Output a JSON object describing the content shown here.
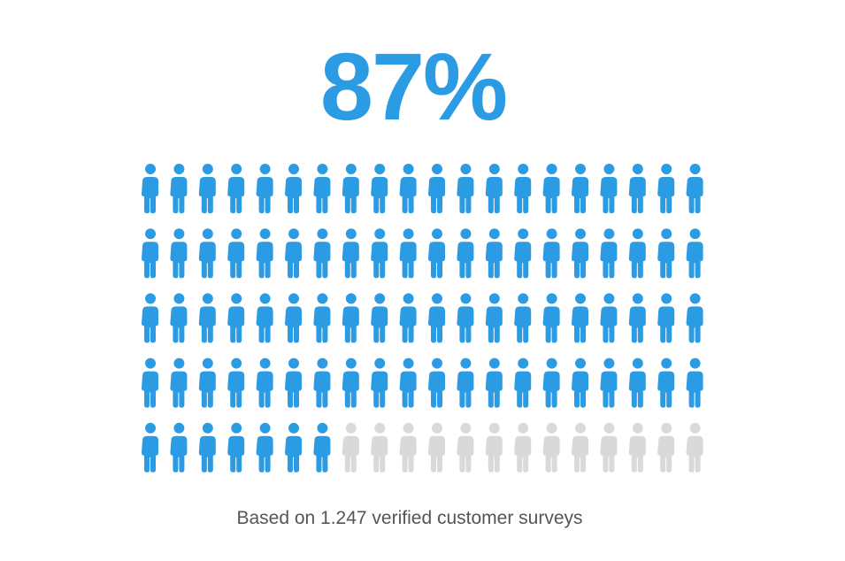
{
  "chart_data": {
    "type": "pictogram",
    "values": [
      87
    ],
    "value_labels": [
      "87%"
    ],
    "total": 100,
    "color": "#2b9be3",
    "empty_color": "#d9d9d9",
    "note": "Based on 1.247 verified customer surveys"
  }
}
